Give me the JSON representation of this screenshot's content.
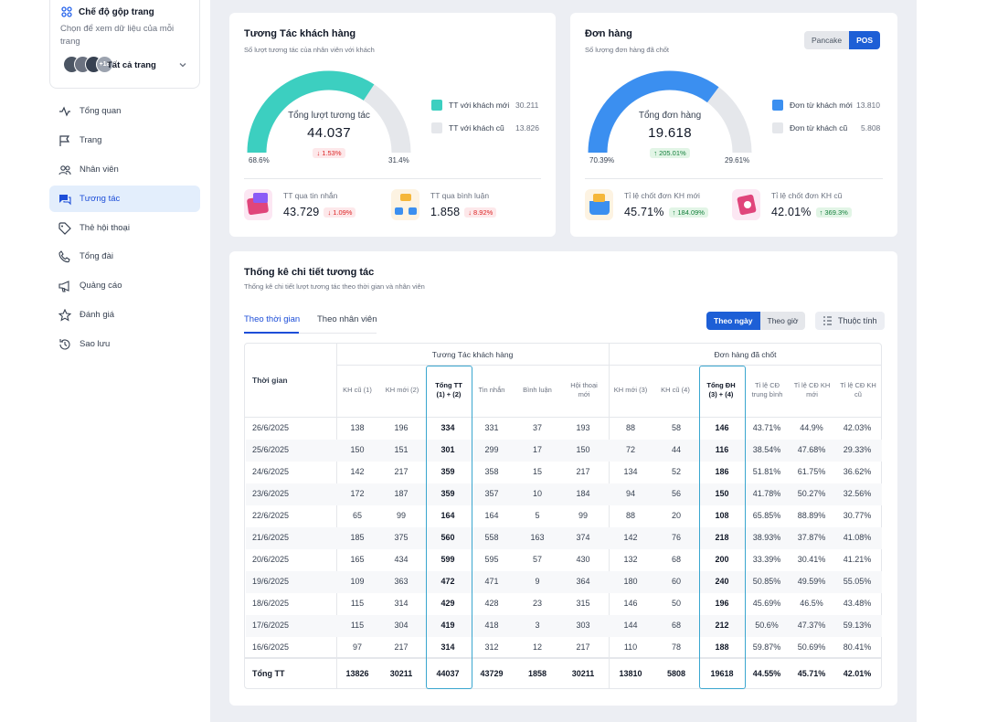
{
  "sidebar": {
    "merge": {
      "title": "Chế độ gộp trang",
      "desc": "Chọn để xem dữ liệu của mỗi trang",
      "badge": "+18",
      "selection": "Tất cả trang"
    },
    "items": [
      {
        "label": "Tổng quan",
        "icon": "activity-icon"
      },
      {
        "label": "Trang",
        "icon": "flag-icon"
      },
      {
        "label": "Nhân viên",
        "icon": "users-icon"
      },
      {
        "label": "Tương tác",
        "icon": "chat-icon"
      },
      {
        "label": "Thẻ hội thoại",
        "icon": "tag-icon"
      },
      {
        "label": "Tổng đài",
        "icon": "phone-icon"
      },
      {
        "label": "Quảng cáo",
        "icon": "megaphone-icon"
      },
      {
        "label": "Đánh giá",
        "icon": "star-icon"
      },
      {
        "label": "Sao lưu",
        "icon": "history-icon"
      }
    ],
    "active_index": 3
  },
  "interaction": {
    "title": "Tương Tác khách hàng",
    "subtitle": "Số lượt tương tác của nhân viên với khách",
    "gauge": {
      "label": "Tổng lượt tương tác",
      "value": "44.037",
      "change": "1.53%",
      "change_dir": "down",
      "left_pct": "68.6%",
      "right_pct": "31.4%",
      "fraction": 0.686,
      "color": "#3ccfc0",
      "rest_color": "#e5e7eb"
    },
    "legend": [
      {
        "label": "TT với khách mới",
        "value": "30.211",
        "color": "#3ccfc0"
      },
      {
        "label": "TT với khách cũ",
        "value": "13.826",
        "color": "#e5e7eb"
      }
    ],
    "stats": [
      {
        "label": "TT qua tin nhắn",
        "value": "43.729",
        "change": "1.09%",
        "dir": "down"
      },
      {
        "label": "TT qua bình luận",
        "value": "1.858",
        "change": "8.92%",
        "dir": "down"
      }
    ]
  },
  "orders": {
    "title": "Đơn hàng",
    "subtitle": "Số lượng đơn hàng đã chốt",
    "toggle": {
      "options": [
        "Pancake",
        "POS"
      ],
      "active": "POS"
    },
    "gauge": {
      "label": "Tổng đơn hàng",
      "value": "19.618",
      "change": "205.01%",
      "change_dir": "up",
      "left_pct": "70.39%",
      "right_pct": "29.61%",
      "fraction": 0.7039,
      "color": "#3b8ff0",
      "rest_color": "#e5e7eb"
    },
    "legend": [
      {
        "label": "Đơn từ khách mới",
        "value": "13.810",
        "color": "#3b8ff0"
      },
      {
        "label": "Đơn từ khách cũ",
        "value": "5.808",
        "color": "#e5e7eb"
      }
    ],
    "stats": [
      {
        "label": "Tỉ lệ chốt đơn KH mới",
        "value": "45.71%",
        "change": "184.09%",
        "dir": "up"
      },
      {
        "label": "Tỉ lệ chốt đơn KH cũ",
        "value": "42.01%",
        "change": "369.3%",
        "dir": "up"
      }
    ]
  },
  "detail": {
    "title": "Thống kê chi tiết tương tác",
    "subtitle": "Thống kê chi tiết lượt tương tác theo thời gian và nhân viên",
    "tabs": [
      "Theo thời gian",
      "Theo nhân viên"
    ],
    "active_tab": 0,
    "mode": {
      "options": [
        "Theo ngày",
        "Theo giờ"
      ],
      "active": "Theo ngày"
    },
    "props_label": "Thuộc tính",
    "table": {
      "time_header": "Thời gian",
      "groups": [
        "Tương Tác khách hàng",
        "Đơn hàng đã chốt"
      ],
      "columns": [
        "KH cũ (1)",
        "KH mới (2)",
        "Tổng TT\n(1) + (2)",
        "Tin nhắn",
        "Bình luận",
        "Hội thoại\nmới",
        "KH mới (3)",
        "KH cũ (4)",
        "Tổng ĐH\n(3) + (4)",
        "Tỉ lệ CĐ\ntrung bình",
        "Tỉ lệ CĐ KH\nmới",
        "Tỉ lệ CĐ KH\ncũ"
      ],
      "rows": [
        [
          "26/6/2025",
          "138",
          "196",
          "334",
          "331",
          "37",
          "193",
          "88",
          "58",
          "146",
          "43.71%",
          "44.9%",
          "42.03%"
        ],
        [
          "25/6/2025",
          "150",
          "151",
          "301",
          "299",
          "17",
          "150",
          "72",
          "44",
          "116",
          "38.54%",
          "47.68%",
          "29.33%"
        ],
        [
          "24/6/2025",
          "142",
          "217",
          "359",
          "358",
          "15",
          "217",
          "134",
          "52",
          "186",
          "51.81%",
          "61.75%",
          "36.62%"
        ],
        [
          "23/6/2025",
          "172",
          "187",
          "359",
          "357",
          "10",
          "184",
          "94",
          "56",
          "150",
          "41.78%",
          "50.27%",
          "32.56%"
        ],
        [
          "22/6/2025",
          "65",
          "99",
          "164",
          "164",
          "5",
          "99",
          "88",
          "20",
          "108",
          "65.85%",
          "88.89%",
          "30.77%"
        ],
        [
          "21/6/2025",
          "185",
          "375",
          "560",
          "558",
          "163",
          "374",
          "142",
          "76",
          "218",
          "38.93%",
          "37.87%",
          "41.08%"
        ],
        [
          "20/6/2025",
          "165",
          "434",
          "599",
          "595",
          "57",
          "430",
          "132",
          "68",
          "200",
          "33.39%",
          "30.41%",
          "41.21%"
        ],
        [
          "19/6/2025",
          "109",
          "363",
          "472",
          "471",
          "9",
          "364",
          "180",
          "60",
          "240",
          "50.85%",
          "49.59%",
          "55.05%"
        ],
        [
          "18/6/2025",
          "115",
          "314",
          "429",
          "428",
          "23",
          "315",
          "146",
          "50",
          "196",
          "45.69%",
          "46.5%",
          "43.48%"
        ],
        [
          "17/6/2025",
          "115",
          "304",
          "419",
          "418",
          "3",
          "303",
          "144",
          "68",
          "212",
          "50.6%",
          "47.37%",
          "59.13%"
        ],
        [
          "16/6/2025",
          "97",
          "217",
          "314",
          "312",
          "12",
          "217",
          "110",
          "78",
          "188",
          "59.87%",
          "50.69%",
          "80.41%"
        ]
      ],
      "total": [
        "Tổng TT",
        "13826",
        "30211",
        "44037",
        "43729",
        "1858",
        "30211",
        "13810",
        "5808",
        "19618",
        "44.55%",
        "45.71%",
        "42.01%"
      ]
    }
  }
}
